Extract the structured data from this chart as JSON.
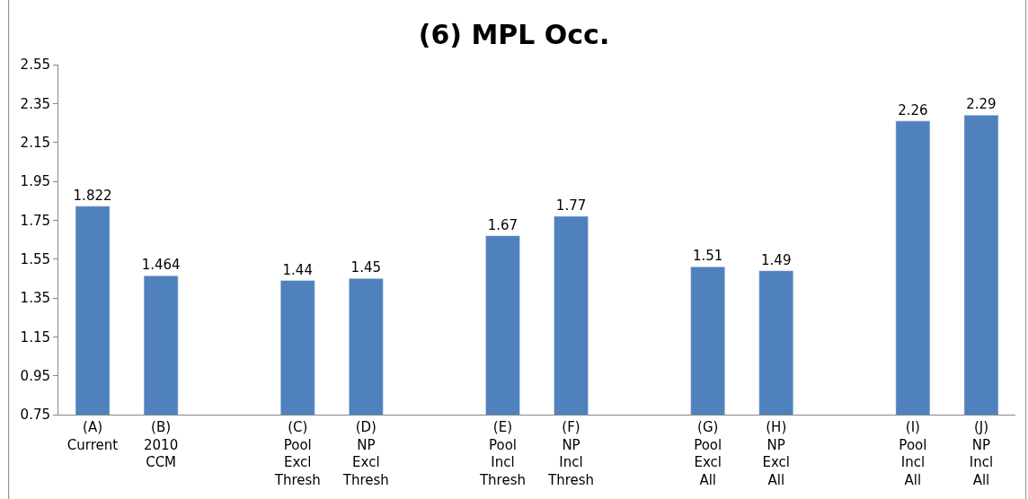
{
  "chart_data": {
    "type": "bar",
    "title": "(6) MPL Occ.",
    "categories": [
      "(A)\nCurrent",
      "(B)\n2010\nCCM",
      null,
      "(C)\nPool\nExcl\nThresh",
      "(D)\nNP\nExcl\nThresh",
      null,
      "(E)\nPool\nIncl\nThresh",
      "(F)\nNP\nIncl\nThresh",
      null,
      "(G)\nPool\nExcl\nAll",
      "(H)\nNP\nExcl\nAll",
      null,
      "(I)\nPool\nIncl\nAll",
      "(J)\nNP\nIncl\nAll"
    ],
    "values": [
      1.822,
      1.464,
      null,
      1.44,
      1.45,
      null,
      1.67,
      1.77,
      null,
      1.51,
      1.49,
      null,
      2.26,
      2.29
    ],
    "color": "#4f81bd",
    "data_labels": true,
    "ylim": [
      0.75,
      2.55
    ],
    "yticks": [
      0.75,
      0.95,
      1.15,
      1.35,
      1.55,
      1.75,
      1.95,
      2.15,
      2.35,
      2.55
    ]
  }
}
